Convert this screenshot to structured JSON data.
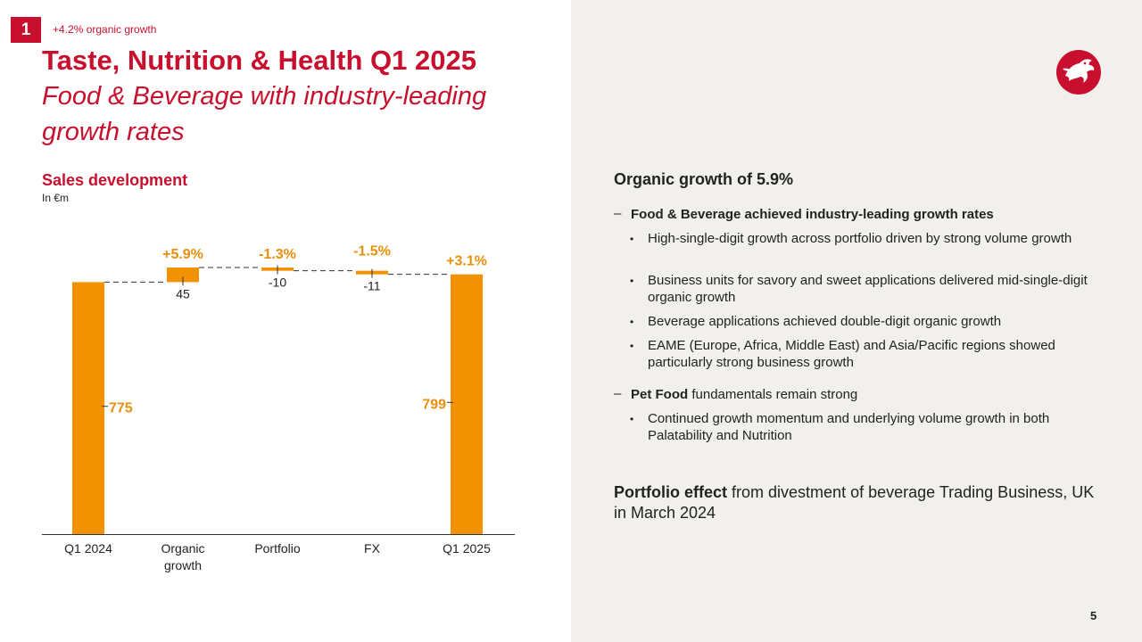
{
  "badge": {
    "number": "1",
    "note": "+4.2% organic growth"
  },
  "header": {
    "title": "Taste, Nutrition & Health Q1 2025",
    "subtitle": "Food & Beverage with industry-leading growth rates"
  },
  "chart_section": {
    "title": "Sales development",
    "unit": "In €m"
  },
  "chart_data": {
    "type": "waterfall",
    "categories": [
      "Q1 2024",
      "Organic growth",
      "Portfolio",
      "FX",
      "Q1 2025"
    ],
    "category_lines": [
      [
        "Q1 2024"
      ],
      [
        "Organic",
        "growth"
      ],
      [
        "Portfolio"
      ],
      [
        "FX"
      ],
      [
        "Q1 2025"
      ]
    ],
    "values": [
      775,
      45,
      -10,
      -11,
      799
    ],
    "kinds": [
      "total",
      "delta",
      "delta",
      "delta",
      "total"
    ],
    "value_labels": [
      "775",
      "45",
      "-10",
      "-11",
      "799"
    ],
    "percent_labels": [
      "",
      "+5.9%",
      "-1.3%",
      "-1.5%",
      "+3.1%"
    ],
    "colors": {
      "bar": "#f39200",
      "percent": "#e8900c",
      "axis": "#333333",
      "connector": "#333333"
    }
  },
  "right_panel": {
    "heading": "Organic growth of 5.9%",
    "section1_title": "Food & Beverage achieved industry-leading growth rates",
    "section1_bullets": [
      "High-single-digit growth across portfolio driven by strong volume growth",
      "Business units for savory and sweet applications delivered mid-single-digit organic growth",
      "Beverage applications achieved double-digit organic growth",
      "EAME (Europe, Africa, Middle East) and Asia/Pacific regions showed particularly strong business growth"
    ],
    "section2_title": "Pet Food",
    "section2_rest": "fundamentals remain strong",
    "section2_bullets": [
      "Continued growth momentum and underlying volume growth in both Palatability and Nutrition"
    ],
    "portfolio_bold": "Portfolio effect",
    "portfolio_rest": "from divestment of beverage Trading Business, UK in March 2024"
  },
  "page_number": "5",
  "brand_color": "#c8102e",
  "logo_icon": "dragon-logo-icon"
}
